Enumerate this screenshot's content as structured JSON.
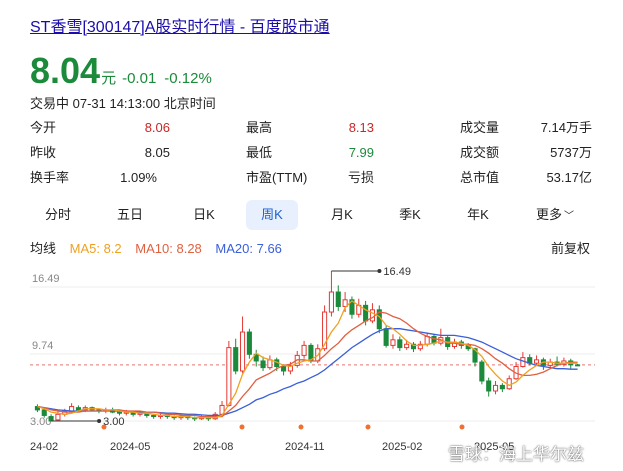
{
  "header": {
    "title": "ST香雪[300147]A股实时行情 - 百度股市通"
  },
  "price": {
    "value": "8.04",
    "unit": "元",
    "change": "-0.01",
    "change_pct": "-0.12%"
  },
  "status": {
    "text": "交易中 07-31 14:13:00 北京时间"
  },
  "quote": {
    "open_label": "今开",
    "open": "8.06",
    "high_label": "最高",
    "high": "8.13",
    "volume_label": "成交量",
    "volume": "7.14万手",
    "prev_close_label": "昨收",
    "prev_close": "8.05",
    "low_label": "最低",
    "low": "7.99",
    "turnover_label": "成交额",
    "turnover": "5737万",
    "turnover_rate_label": "换手率",
    "turnover_rate": "1.09%",
    "pe_label": "市盈(TTM)",
    "pe": "亏损",
    "market_cap_label": "总市值",
    "market_cap": "53.17亿"
  },
  "tabs": {
    "minute": "分时",
    "five_day": "五日",
    "day_k": "日K",
    "week_k": "周K",
    "month_k": "月K",
    "quarter_k": "季K",
    "year_k": "年K",
    "more": "更多"
  },
  "legend": {
    "title": "均线",
    "ma5": "MA5: 8.2",
    "ma10": "MA10: 8.28",
    "ma20": "MA20: 7.66",
    "adjust": "前复权"
  },
  "chart_data": {
    "type": "candlestick",
    "y_ticks": [
      "16.49",
      "9.74",
      "3.00"
    ],
    "x_ticks": [
      "24-02",
      "2024-05",
      "2024-08",
      "2024-11",
      "2025-02",
      "2025-05"
    ],
    "max_label": "16.49",
    "min_label": "3.00",
    "reference_price": 8.05,
    "ylim": [
      3.0,
      16.49
    ],
    "colors": {
      "up": "#e53935",
      "down": "#1b8a3a",
      "ma5": "#f0a020",
      "ma10": "#e06040",
      "ma20": "#3a5fd8",
      "ref": "#e57373"
    },
    "candles": [
      {
        "o": 4.3,
        "c": 4.0,
        "h": 4.5,
        "l": 3.8
      },
      {
        "o": 4.0,
        "c": 3.5,
        "h": 4.2,
        "l": 3.3
      },
      {
        "o": 3.4,
        "c": 3.0,
        "h": 3.6,
        "l": 3.0
      },
      {
        "o": 3.1,
        "c": 3.6,
        "h": 3.9,
        "l": 3.0
      },
      {
        "o": 3.6,
        "c": 3.9,
        "h": 4.1,
        "l": 3.4
      },
      {
        "o": 3.9,
        "c": 4.3,
        "h": 4.6,
        "l": 3.7
      },
      {
        "o": 4.2,
        "c": 4.0,
        "h": 4.4,
        "l": 3.8
      },
      {
        "o": 4.0,
        "c": 4.2,
        "h": 4.4,
        "l": 3.8
      },
      {
        "o": 4.2,
        "c": 4.0,
        "h": 4.3,
        "l": 3.9
      },
      {
        "o": 4.0,
        "c": 3.9,
        "h": 4.1,
        "l": 3.7
      },
      {
        "o": 3.9,
        "c": 4.0,
        "h": 4.2,
        "l": 3.7
      },
      {
        "o": 4.0,
        "c": 3.8,
        "h": 4.2,
        "l": 3.7
      },
      {
        "o": 3.8,
        "c": 3.7,
        "h": 3.9,
        "l": 3.5
      },
      {
        "o": 3.7,
        "c": 3.8,
        "h": 4.0,
        "l": 3.5
      },
      {
        "o": 3.8,
        "c": 3.6,
        "h": 3.9,
        "l": 3.4
      },
      {
        "o": 3.6,
        "c": 3.7,
        "h": 3.8,
        "l": 3.4
      },
      {
        "o": 3.7,
        "c": 3.5,
        "h": 3.8,
        "l": 3.3
      },
      {
        "o": 3.5,
        "c": 3.4,
        "h": 3.6,
        "l": 3.2
      },
      {
        "o": 3.4,
        "c": 3.5,
        "h": 3.7,
        "l": 3.2
      },
      {
        "o": 3.5,
        "c": 3.4,
        "h": 3.6,
        "l": 3.2
      },
      {
        "o": 3.4,
        "c": 3.3,
        "h": 3.5,
        "l": 3.1
      },
      {
        "o": 3.3,
        "c": 3.4,
        "h": 3.6,
        "l": 3.1
      },
      {
        "o": 3.4,
        "c": 3.3,
        "h": 3.5,
        "l": 3.1
      },
      {
        "o": 3.3,
        "c": 3.2,
        "h": 3.4,
        "l": 3.0
      },
      {
        "o": 3.2,
        "c": 3.3,
        "h": 3.5,
        "l": 3.1
      },
      {
        "o": 3.3,
        "c": 3.2,
        "h": 3.4,
        "l": 3.0
      },
      {
        "o": 3.2,
        "c": 3.6,
        "h": 3.8,
        "l": 3.1
      },
      {
        "o": 3.6,
        "c": 4.4,
        "h": 4.8,
        "l": 3.5
      },
      {
        "o": 4.4,
        "c": 9.6,
        "h": 10.2,
        "l": 4.3
      },
      {
        "o": 9.6,
        "c": 7.5,
        "h": 10.4,
        "l": 7.2
      },
      {
        "o": 7.5,
        "c": 11.0,
        "h": 12.4,
        "l": 7.3
      },
      {
        "o": 11.0,
        "c": 9.0,
        "h": 11.3,
        "l": 8.6
      },
      {
        "o": 9.0,
        "c": 8.4,
        "h": 9.4,
        "l": 7.9
      },
      {
        "o": 8.4,
        "c": 7.8,
        "h": 8.8,
        "l": 7.5
      },
      {
        "o": 7.8,
        "c": 8.5,
        "h": 8.9,
        "l": 7.6
      },
      {
        "o": 8.5,
        "c": 7.9,
        "h": 8.7,
        "l": 7.5
      },
      {
        "o": 7.9,
        "c": 7.5,
        "h": 8.1,
        "l": 7.1
      },
      {
        "o": 7.5,
        "c": 8.0,
        "h": 8.3,
        "l": 7.2
      },
      {
        "o": 8.0,
        "c": 8.9,
        "h": 9.3,
        "l": 7.8
      },
      {
        "o": 8.9,
        "c": 9.8,
        "h": 10.2,
        "l": 8.6
      },
      {
        "o": 9.8,
        "c": 8.4,
        "h": 10.0,
        "l": 8.2
      },
      {
        "o": 8.4,
        "c": 9.5,
        "h": 9.9,
        "l": 8.2
      },
      {
        "o": 9.5,
        "c": 12.8,
        "h": 13.4,
        "l": 9.3
      },
      {
        "o": 12.8,
        "c": 14.6,
        "h": 16.49,
        "l": 12.4
      },
      {
        "o": 14.6,
        "c": 13.3,
        "h": 15.2,
        "l": 12.9
      },
      {
        "o": 13.3,
        "c": 13.9,
        "h": 14.6,
        "l": 12.8
      },
      {
        "o": 13.9,
        "c": 12.6,
        "h": 14.2,
        "l": 12.2
      },
      {
        "o": 12.6,
        "c": 13.4,
        "h": 14.0,
        "l": 12.3
      },
      {
        "o": 13.4,
        "c": 12.0,
        "h": 13.8,
        "l": 11.6
      },
      {
        "o": 12.0,
        "c": 13.0,
        "h": 13.6,
        "l": 11.8
      },
      {
        "o": 13.0,
        "c": 11.3,
        "h": 13.4,
        "l": 10.9
      },
      {
        "o": 11.3,
        "c": 9.8,
        "h": 11.6,
        "l": 9.6
      },
      {
        "o": 9.8,
        "c": 10.3,
        "h": 10.8,
        "l": 9.5
      },
      {
        "o": 10.3,
        "c": 9.6,
        "h": 10.6,
        "l": 9.3
      },
      {
        "o": 9.6,
        "c": 9.9,
        "h": 10.3,
        "l": 9.4
      },
      {
        "o": 9.9,
        "c": 9.5,
        "h": 10.1,
        "l": 9.2
      },
      {
        "o": 9.5,
        "c": 9.9,
        "h": 10.2,
        "l": 9.3
      },
      {
        "o": 9.9,
        "c": 10.6,
        "h": 10.9,
        "l": 9.7
      },
      {
        "o": 10.6,
        "c": 10.0,
        "h": 10.8,
        "l": 9.8
      },
      {
        "o": 10.0,
        "c": 10.5,
        "h": 11.3,
        "l": 9.8
      },
      {
        "o": 10.5,
        "c": 9.7,
        "h": 10.7,
        "l": 9.4
      },
      {
        "o": 9.7,
        "c": 10.1,
        "h": 10.4,
        "l": 9.5
      },
      {
        "o": 10.1,
        "c": 9.8,
        "h": 10.3,
        "l": 9.5
      },
      {
        "o": 9.8,
        "c": 9.5,
        "h": 10.0,
        "l": 9.3
      },
      {
        "o": 9.5,
        "c": 8.3,
        "h": 9.6,
        "l": 7.9
      },
      {
        "o": 8.3,
        "c": 6.6,
        "h": 8.5,
        "l": 6.3
      },
      {
        "o": 6.6,
        "c": 5.7,
        "h": 6.9,
        "l": 5.2
      },
      {
        "o": 5.7,
        "c": 6.2,
        "h": 6.6,
        "l": 5.4
      },
      {
        "o": 6.2,
        "c": 5.9,
        "h": 6.4,
        "l": 5.6
      },
      {
        "o": 5.9,
        "c": 6.8,
        "h": 7.1,
        "l": 5.8
      },
      {
        "o": 6.8,
        "c": 7.9,
        "h": 8.3,
        "l": 6.7
      },
      {
        "o": 7.9,
        "c": 8.7,
        "h": 9.2,
        "l": 7.8
      },
      {
        "o": 8.7,
        "c": 8.2,
        "h": 9.0,
        "l": 8.0
      },
      {
        "o": 8.2,
        "c": 8.5,
        "h": 8.9,
        "l": 8.0
      },
      {
        "o": 8.5,
        "c": 8.0,
        "h": 8.7,
        "l": 7.6
      },
      {
        "o": 8.0,
        "c": 8.3,
        "h": 8.6,
        "l": 7.8
      },
      {
        "o": 8.3,
        "c": 8.1,
        "h": 8.8,
        "l": 7.9
      },
      {
        "o": 8.1,
        "c": 8.4,
        "h": 8.7,
        "l": 7.9
      },
      {
        "o": 8.4,
        "c": 8.05,
        "h": 8.6,
        "l": 7.7
      },
      {
        "o": 8.05,
        "c": 8.04,
        "h": 8.13,
        "l": 7.99
      }
    ],
    "ma5": [
      4.3,
      4.1,
      3.8,
      3.7,
      3.6,
      3.7,
      3.9,
      4.1,
      4.1,
      4.1,
      4.0,
      4.0,
      3.9,
      3.8,
      3.8,
      3.7,
      3.7,
      3.6,
      3.5,
      3.5,
      3.4,
      3.4,
      3.4,
      3.3,
      3.3,
      3.3,
      3.3,
      3.5,
      4.5,
      5.5,
      7.2,
      8.3,
      9.1,
      8.7,
      8.5,
      8.3,
      8.0,
      7.9,
      8.2,
      8.4,
      8.5,
      8.9,
      9.9,
      11.0,
      11.8,
      13.2,
      13.8,
      13.4,
      13.0,
      12.7,
      12.4,
      11.6,
      11.3,
      10.8,
      10.2,
      9.8,
      9.8,
      9.9,
      10.0,
      10.2,
      10.1,
      10.1,
      10.0,
      9.8,
      9.4,
      8.8,
      7.9,
      7.2,
      6.6,
      6.2,
      6.5,
      7.1,
      7.6,
      8.0,
      8.3,
      8.3,
      8.2,
      8.2,
      8.2,
      8.2
    ],
    "ma10": [
      4.3,
      4.2,
      4.0,
      3.9,
      3.8,
      3.8,
      3.8,
      3.9,
      3.9,
      3.9,
      3.9,
      4.0,
      4.0,
      3.9,
      3.9,
      3.9,
      3.8,
      3.8,
      3.7,
      3.6,
      3.6,
      3.5,
      3.5,
      3.5,
      3.4,
      3.4,
      3.4,
      3.4,
      3.9,
      4.4,
      5.2,
      5.9,
      6.7,
      7.0,
      7.3,
      7.7,
      8.0,
      8.1,
      8.5,
      8.5,
      8.4,
      8.4,
      8.9,
      9.5,
      10.0,
      10.7,
      11.2,
      11.6,
      12.0,
      12.3,
      12.8,
      12.7,
      12.4,
      12.2,
      11.8,
      11.3,
      10.9,
      10.6,
      10.4,
      10.3,
      10.0,
      10.0,
      9.9,
      9.9,
      9.8,
      9.5,
      9.1,
      8.6,
      8.2,
      7.7,
      7.3,
      7.1,
      7.1,
      7.2,
      7.4,
      7.7,
      8.0,
      8.2,
      8.3,
      8.28
    ],
    "ma20": [
      4.3,
      4.2,
      4.1,
      4.0,
      3.95,
      3.9,
      3.9,
      3.9,
      3.9,
      3.9,
      3.9,
      3.9,
      3.9,
      3.9,
      3.85,
      3.8,
      3.8,
      3.8,
      3.75,
      3.7,
      3.7,
      3.65,
      3.6,
      3.6,
      3.55,
      3.5,
      3.5,
      3.5,
      3.7,
      3.9,
      4.2,
      4.5,
      4.9,
      5.1,
      5.4,
      5.6,
      5.9,
      6.1,
      6.4,
      6.6,
      6.9,
      7.2,
      7.6,
      8.1,
      8.6,
      9.1,
      9.6,
      10.0,
      10.4,
      10.8,
      11.1,
      11.3,
      11.3,
      11.3,
      11.2,
      11.1,
      11.0,
      10.9,
      10.8,
      10.7,
      10.7,
      10.7,
      10.6,
      10.5,
      10.3,
      10.1,
      9.8,
      9.5,
      9.2,
      8.9,
      8.6,
      8.4,
      8.2,
      8.0,
      7.9,
      7.8,
      7.7,
      7.7,
      7.66,
      7.66
    ]
  },
  "watermark": "雪球：海上华尔兹"
}
